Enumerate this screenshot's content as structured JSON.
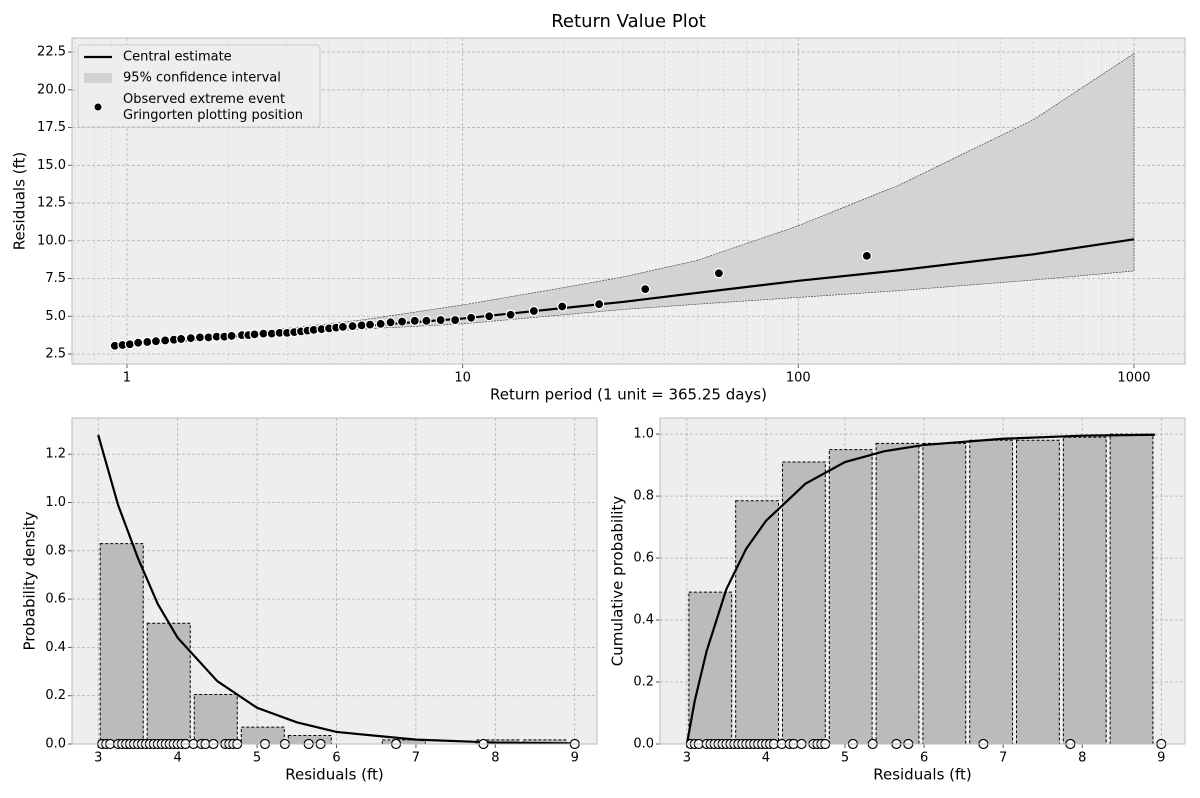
{
  "chart_data": [
    {
      "type": "line",
      "title": "Return Value Plot",
      "xlabel": "Return period (1 unit = 365.25 days)",
      "ylabel": "Residuals (ft)",
      "xscale": "log",
      "xlim": [
        0.686,
        1419
      ],
      "xticks": [
        1,
        10,
        100,
        1000
      ],
      "ylim": [
        1.84,
        23.43
      ],
      "yticks": [
        2.5,
        {
          "value": 5,
          "label": "5.0"
        },
        7.5,
        {
          "value": 10,
          "label": "10.0"
        },
        12.5,
        {
          "value": 15,
          "label": "15.0"
        },
        17.5,
        {
          "value": 20,
          "label": "20.0"
        },
        22.5
      ],
      "grid": true,
      "legend": "upper left",
      "series": [
        {
          "name": "Central estimate",
          "color": "#000000",
          "kind": "line",
          "x": [
            0.9,
            1,
            2,
            3,
            5,
            10,
            20,
            30,
            50,
            100,
            200,
            500,
            1000
          ],
          "values": [
            3.02,
            3.1,
            3.65,
            3.95,
            4.35,
            4.85,
            5.55,
            5.95,
            6.55,
            7.35,
            8.05,
            9.1,
            10.1
          ]
        },
        {
          "name": "95% confidence interval",
          "color": "#d3d3d3",
          "kind": "band",
          "x": [
            0.9,
            1,
            2,
            3,
            5,
            10,
            20,
            30,
            50,
            100,
            200,
            500,
            1000
          ],
          "lower": [
            2.98,
            3.05,
            3.55,
            3.8,
            4.15,
            4.5,
            5.1,
            5.45,
            5.8,
            6.25,
            6.7,
            7.4,
            8.0
          ],
          "upper": [
            3.07,
            3.15,
            3.8,
            4.2,
            4.75,
            5.75,
            6.9,
            7.6,
            8.7,
            11.0,
            13.7,
            18.0,
            22.4
          ]
        },
        {
          "name": "Observed extreme event\nGringorten plotting position",
          "color": "#000000",
          "kind": "scatter",
          "x": [
            0.92,
            0.97,
            1.02,
            1.08,
            1.15,
            1.22,
            1.3,
            1.38,
            1.45,
            1.55,
            1.65,
            1.75,
            1.85,
            1.95,
            2.05,
            2.2,
            2.3,
            2.4,
            2.55,
            2.7,
            2.85,
            3.0,
            3.15,
            3.3,
            3.45,
            3.6,
            3.8,
            4.0,
            4.2,
            4.4,
            4.7,
            5.0,
            5.3,
            5.7,
            6.1,
            6.6,
            7.2,
            7.8,
            8.6,
            9.5,
            10.6,
            12,
            13.9,
            16.3,
            19.8,
            25.5,
            35,
            58,
            160
          ],
          "values": [
            3.05,
            3.1,
            3.15,
            3.25,
            3.3,
            3.35,
            3.4,
            3.45,
            3.5,
            3.55,
            3.6,
            3.6,
            3.65,
            3.65,
            3.7,
            3.75,
            3.75,
            3.8,
            3.85,
            3.85,
            3.9,
            3.9,
            3.95,
            4.0,
            4.05,
            4.1,
            4.15,
            4.2,
            4.25,
            4.3,
            4.35,
            4.4,
            4.45,
            4.5,
            4.6,
            4.65,
            4.7,
            4.7,
            4.75,
            4.75,
            4.9,
            5.0,
            5.1,
            5.35,
            5.65,
            5.8,
            6.8,
            7.85,
            9.0
          ]
        }
      ]
    },
    {
      "type": "histogram",
      "xlabel": "Residuals (ft)",
      "ylabel": "Probability density",
      "xlim": [
        2.67,
        9.28
      ],
      "xticks": [
        3,
        4,
        5,
        6,
        7,
        8,
        9
      ],
      "ylim": [
        0,
        1.35
      ],
      "yticks": [
        {
          "value": 0,
          "label": "0.0"
        },
        0.2,
        0.4,
        0.6,
        0.8,
        {
          "value": 1,
          "label": "1.0"
        },
        1.2
      ],
      "grid": true,
      "color": "#bbbbbb",
      "bins": [
        3.0,
        3.592,
        4.184,
        4.776,
        5.368,
        5.96,
        6.552,
        7.144,
        7.736,
        8.328,
        8.92
      ],
      "values": [
        0.83,
        0.5,
        0.205,
        0.07,
        0.035,
        0.0,
        0.017,
        0.0,
        0.017,
        0.017
      ],
      "curve": {
        "x": [
          3.0,
          3.25,
          3.5,
          3.75,
          4.0,
          4.5,
          5.0,
          5.5,
          6.0,
          7.0,
          8.0,
          9.0
        ],
        "values": [
          1.28,
          0.99,
          0.77,
          0.58,
          0.44,
          0.26,
          0.15,
          0.09,
          0.05,
          0.018,
          0.006,
          0.002
        ]
      },
      "points": [
        3.05,
        3.1,
        3.15,
        3.25,
        3.3,
        3.35,
        3.4,
        3.45,
        3.5,
        3.55,
        3.6,
        3.65,
        3.7,
        3.75,
        3.8,
        3.85,
        3.9,
        3.95,
        4.0,
        4.05,
        4.1,
        4.2,
        4.3,
        4.35,
        4.45,
        4.6,
        4.65,
        4.7,
        4.75,
        5.1,
        5.35,
        5.65,
        5.8,
        6.75,
        7.85,
        9.0
      ]
    },
    {
      "type": "histogram",
      "xlabel": "Residuals (ft)",
      "ylabel": "Cumulative probability",
      "xlim": [
        2.66,
        9.3
      ],
      "xticks": [
        3,
        4,
        5,
        6,
        7,
        8,
        9
      ],
      "ylim": [
        0,
        1.052
      ],
      "yticks": [
        {
          "value": 0,
          "label": "0.0"
        },
        0.2,
        0.4,
        0.6,
        0.8,
        {
          "value": 1,
          "label": "1.0"
        }
      ],
      "grid": true,
      "color": "#bbbbbb",
      "bins": [
        3.0,
        3.592,
        4.184,
        4.776,
        5.368,
        5.96,
        6.552,
        7.144,
        7.736,
        8.328,
        8.92
      ],
      "values": [
        0.49,
        0.785,
        0.91,
        0.95,
        0.97,
        0.97,
        0.98,
        0.98,
        0.99,
        1.0
      ],
      "curve": {
        "x": [
          3.0,
          3.1,
          3.25,
          3.5,
          3.75,
          4.0,
          4.5,
          5.0,
          5.5,
          6.0,
          7.0,
          8.0,
          8.92
        ],
        "values": [
          0.0,
          0.14,
          0.3,
          0.5,
          0.63,
          0.72,
          0.84,
          0.91,
          0.945,
          0.965,
          0.985,
          0.995,
          0.998
        ]
      },
      "points": [
        3.05,
        3.1,
        3.15,
        3.25,
        3.3,
        3.35,
        3.4,
        3.45,
        3.5,
        3.55,
        3.6,
        3.65,
        3.7,
        3.75,
        3.8,
        3.85,
        3.9,
        3.95,
        4.0,
        4.05,
        4.1,
        4.2,
        4.3,
        4.35,
        4.45,
        4.6,
        4.65,
        4.7,
        4.75,
        5.1,
        5.35,
        5.65,
        5.8,
        6.75,
        7.85,
        9.0
      ]
    }
  ]
}
